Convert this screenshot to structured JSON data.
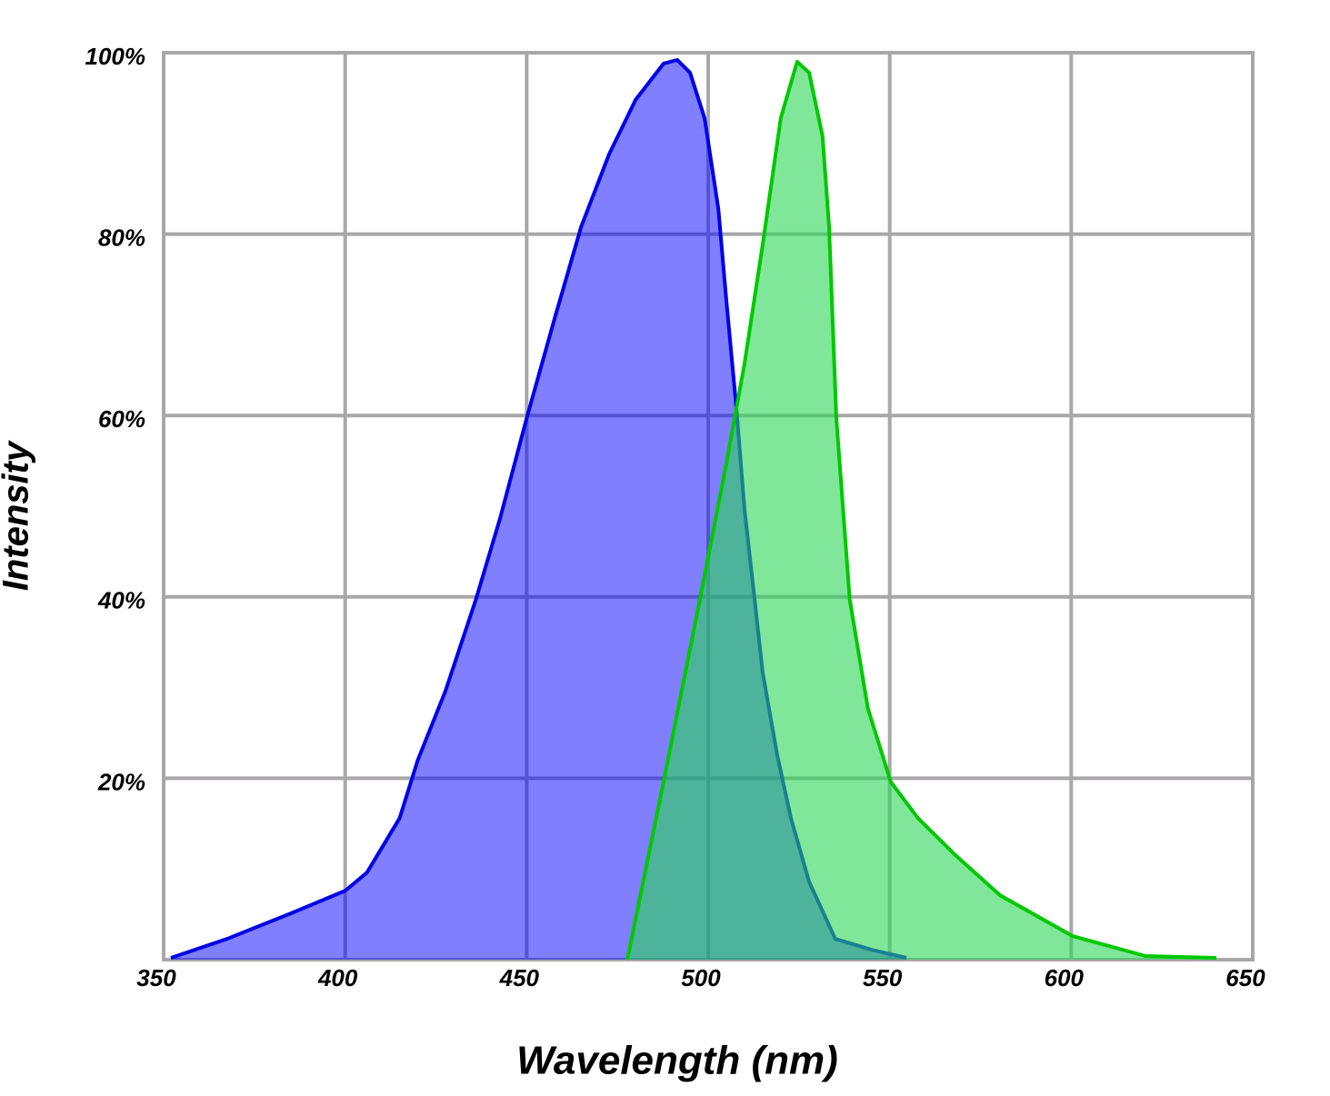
{
  "chart_data": {
    "type": "area",
    "xlabel": "Wavelength (nm)",
    "ylabel": "Intensity",
    "xlim": [
      350,
      650
    ],
    "xticks": [
      350,
      400,
      450,
      500,
      550,
      600,
      650
    ],
    "ylim": [
      0,
      100
    ],
    "yticks": [
      {
        "value": 20,
        "label": "20%"
      },
      {
        "value": 40,
        "label": "40%"
      },
      {
        "value": 60,
        "label": "60%"
      },
      {
        "value": 80,
        "label": "80%"
      },
      {
        "value": 100,
        "label": "100%"
      }
    ],
    "grid": true,
    "series": [
      {
        "color": "#0000e6",
        "x": [
          352,
          367.5,
          385,
          400,
          406,
          415,
          420,
          427.6,
          436,
          442.7,
          450,
          457.7,
          465,
          472.7,
          480,
          487.7,
          491.5,
          495,
          499,
          502.8,
          505,
          507.8,
          510,
          512.8,
          515,
          519,
          522.8,
          527.8,
          535,
          545,
          554.6
        ],
        "values": [
          0.2,
          2.3,
          5.1,
          7.6,
          9.6,
          15.6,
          22,
          29.6,
          39.7,
          48.7,
          59.7,
          70.7,
          80.8,
          88.8,
          94.8,
          98.8,
          99.2,
          97.8,
          92.8,
          82.8,
          72.7,
          60.7,
          49.7,
          39.7,
          31.7,
          22.6,
          15.6,
          8.6,
          2.3,
          1.1,
          0.2
        ]
      },
      {
        "color": "#00c800",
        "x": [
          477.7,
          487.7,
          497.7,
          505,
          510,
          515,
          520,
          524.5,
          527.8,
          531.5,
          533.3,
          535.3,
          539,
          544,
          550.3,
          557.8,
          567.9,
          580.4,
          600.4,
          620.5,
          640
        ],
        "values": [
          0,
          19.6,
          39.7,
          54.7,
          65.7,
          78.8,
          92.8,
          99,
          97.8,
          90.8,
          80.8,
          59.7,
          39.7,
          27.7,
          19.6,
          15.6,
          11.6,
          7.1,
          2.6,
          0.4,
          0.2
        ]
      }
    ]
  }
}
